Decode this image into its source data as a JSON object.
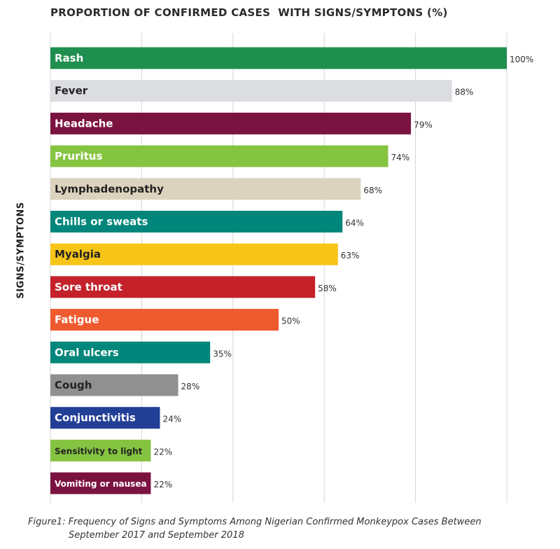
{
  "chart_data": {
    "type": "bar",
    "orientation": "horizontal",
    "title": "PROPORTION OF CONFIRMED CASES  WITH SIGNS/SYMPTONS (%)",
    "ylabel": "SIGNS/SYMPTONS",
    "xlim": [
      0,
      100
    ],
    "grid": true,
    "categories": [
      "Rash",
      "Fever",
      "Headache",
      "Pruritus",
      "Lymphadenopathy",
      "Chills or sweats",
      "Myalgia",
      "Sore throat",
      "Fatigue",
      "Oral ulcers",
      "Cough",
      "Conjunctivitis",
      "Sensitivity to light",
      "Vomiting or nausea"
    ],
    "values": [
      100,
      88,
      79,
      74,
      68,
      64,
      63,
      58,
      50,
      35,
      28,
      24,
      22,
      22
    ],
    "value_labels": [
      "100%",
      "88%",
      "79%",
      "74%",
      "68%",
      "64%",
      "63%",
      "58%",
      "50%",
      "35%",
      "28%",
      "24%",
      "22%",
      "22%"
    ],
    "colors": [
      "#1e8f4e",
      "#dcdde0",
      "#7b1340",
      "#85c441",
      "#dcd3bf",
      "#00867a",
      "#f6c518",
      "#c4212b",
      "#ee5a2e",
      "#00867a",
      "#909090",
      "#223f96",
      "#85c441",
      "#7b1340"
    ],
    "label_colors": [
      "#ffffff",
      "#222222",
      "#ffffff",
      "#ffffff",
      "#222222",
      "#ffffff",
      "#222222",
      "#ffffff",
      "#ffffff",
      "#ffffff",
      "#222222",
      "#ffffff",
      "#222222",
      "#ffffff"
    ]
  },
  "caption": {
    "line1": "Figure1: Frequency of Signs and Symptoms Among Nigerian Confirmed Monkeypox Cases Between",
    "line2": "September 2017 and September 2018"
  }
}
